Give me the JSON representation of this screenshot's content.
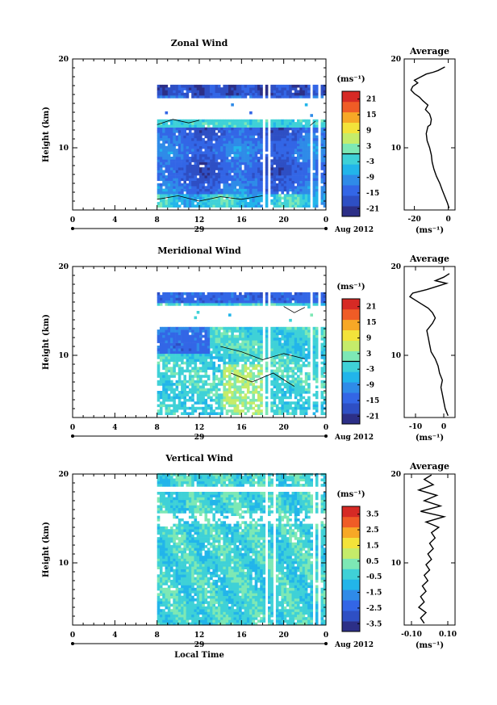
{
  "figure": {
    "bottom_xlabel": "Local Time",
    "date_label": "Aug 2012",
    "day_label": "29",
    "profile_title": "Average"
  },
  "chart_data": [
    {
      "type": "heatmap",
      "id": "zonal",
      "title": "Zonal Wind",
      "ylabel": "Height (km)",
      "xlabel": "",
      "x_ticks": [
        "0",
        "4",
        "8",
        "12",
        "16",
        "20",
        "0"
      ],
      "xlim": [
        0,
        24
      ],
      "ylim": [
        3,
        20
      ],
      "y_ticks": [
        10,
        20
      ],
      "data_time_range": [
        8,
        24
      ],
      "data_height_range": [
        3,
        17
      ],
      "colorbar": {
        "unit": "(ms⁻¹)",
        "ticks": [
          "21",
          "15",
          "9",
          "3",
          "-3",
          "-9",
          "-15",
          "-21"
        ],
        "range": [
          -24,
          24
        ],
        "zero_line": true
      },
      "profile": {
        "title": "Average",
        "xlabel": "(ms⁻¹)",
        "x_ticks": [
          "-20",
          "0"
        ],
        "xlim": [
          -26,
          4
        ],
        "ylim": [
          3,
          20
        ],
        "y_ticks": [
          10,
          20
        ],
        "points": [
          [
            0.5,
            3.2
          ],
          [
            -0.5,
            3.8
          ],
          [
            -2,
            4.5
          ],
          [
            -3.5,
            5.2
          ],
          [
            -5,
            6
          ],
          [
            -7,
            6.8
          ],
          [
            -8.5,
            7.6
          ],
          [
            -9.5,
            8.4
          ],
          [
            -10,
            9.2
          ],
          [
            -11,
            10
          ],
          [
            -12.5,
            10.8
          ],
          [
            -13,
            11.6
          ],
          [
            -12,
            12.4
          ],
          [
            -10.5,
            12.6
          ],
          [
            -10,
            13.2
          ],
          [
            -11,
            13.8
          ],
          [
            -13.5,
            14.3
          ],
          [
            -12,
            14.8
          ],
          [
            -15,
            15.3
          ],
          [
            -17,
            15.7
          ],
          [
            -20,
            16.1
          ],
          [
            -22,
            16.5
          ],
          [
            -21,
            16.9
          ],
          [
            -18,
            17.3
          ],
          [
            -20,
            17.6
          ],
          [
            -16,
            18
          ],
          [
            -13,
            18.3
          ],
          [
            -9,
            18.5
          ],
          [
            -6,
            18.7
          ],
          [
            -2,
            19.1
          ]
        ]
      }
    },
    {
      "type": "heatmap",
      "id": "meridional",
      "title": "Meridional Wind",
      "ylabel": "Height (km)",
      "xlabel": "",
      "x_ticks": [
        "0",
        "4",
        "8",
        "12",
        "16",
        "20",
        "0"
      ],
      "xlim": [
        0,
        24
      ],
      "ylim": [
        3,
        20
      ],
      "y_ticks": [
        10,
        20
      ],
      "data_time_range": [
        8,
        24
      ],
      "data_height_range": [
        3,
        17
      ],
      "colorbar": {
        "unit": "(ms⁻¹)",
        "ticks": [
          "21",
          "15",
          "9",
          "3",
          "-3",
          "-9",
          "-15",
          "-21"
        ],
        "range": [
          -24,
          24
        ],
        "zero_line": true
      },
      "profile": {
        "title": "Average",
        "xlabel": "(ms⁻¹)",
        "x_ticks": [
          "-10",
          "0"
        ],
        "xlim": [
          -14,
          4
        ],
        "ylim": [
          3,
          20
        ],
        "y_ticks": [
          10,
          20
        ],
        "points": [
          [
            1.5,
            3.2
          ],
          [
            0.5,
            4
          ],
          [
            0,
            4.8
          ],
          [
            -0.5,
            5.6
          ],
          [
            -1,
            6.4
          ],
          [
            -0.5,
            7.2
          ],
          [
            -1.5,
            8
          ],
          [
            -2,
            8.8
          ],
          [
            -3,
            9.6
          ],
          [
            -4.5,
            10.4
          ],
          [
            -5,
            11.2
          ],
          [
            -5.5,
            12
          ],
          [
            -6,
            12.8
          ],
          [
            -4,
            13.6
          ],
          [
            -3,
            14.2
          ],
          [
            -4,
            14.8
          ],
          [
            -5.5,
            15.3
          ],
          [
            -8,
            15.8
          ],
          [
            -10,
            16.2
          ],
          [
            -12,
            16.6
          ],
          [
            -11,
            17
          ],
          [
            -6,
            17.4
          ],
          [
            -2,
            17.8
          ],
          [
            1,
            18.1
          ],
          [
            -3,
            18.4
          ],
          [
            0,
            18.8
          ],
          [
            2,
            19.2
          ]
        ]
      }
    },
    {
      "type": "heatmap",
      "id": "vertical",
      "title": "Vertical Wind",
      "ylabel": "Height (km)",
      "xlabel": "Local Time",
      "x_ticks": [
        "0",
        "4",
        "8",
        "12",
        "16",
        "20",
        "0"
      ],
      "xlim": [
        0,
        24
      ],
      "ylim": [
        3,
        20
      ],
      "y_ticks": [
        10,
        20
      ],
      "data_time_range": [
        8,
        24
      ],
      "data_height_range": [
        3,
        20
      ],
      "colorbar": {
        "unit": "(ms⁻¹)",
        "ticks": [
          "3.5",
          "2.5",
          "1.5",
          "0.5",
          "-0.5",
          "-1.5",
          "-2.5",
          "-3.5"
        ],
        "range": [
          -4,
          4
        ],
        "zero_line": false
      },
      "profile": {
        "title": "Average",
        "xlabel": "(ms⁻¹)",
        "x_ticks": [
          "-0.10",
          "0.10"
        ],
        "xlim": [
          -0.14,
          0.14
        ],
        "ylim": [
          3,
          20
        ],
        "y_ticks": [
          10,
          20
        ],
        "points": [
          [
            -0.03,
            3.2
          ],
          [
            -0.05,
            3.8
          ],
          [
            -0.02,
            4.4
          ],
          [
            -0.06,
            5
          ],
          [
            -0.03,
            5.6
          ],
          [
            -0.05,
            6.2
          ],
          [
            -0.02,
            6.8
          ],
          [
            -0.04,
            7.4
          ],
          [
            -0.01,
            8
          ],
          [
            -0.03,
            8.6
          ],
          [
            0.0,
            9.2
          ],
          [
            -0.02,
            9.8
          ],
          [
            0.01,
            10.4
          ],
          [
            -0.01,
            11
          ],
          [
            0.02,
            11.6
          ],
          [
            0.0,
            12.2
          ],
          [
            0.03,
            12.8
          ],
          [
            0.01,
            13.4
          ],
          [
            0.05,
            14
          ],
          [
            -0.02,
            14.6
          ],
          [
            0.08,
            15.2
          ],
          [
            -0.05,
            15.8
          ],
          [
            0.06,
            16.4
          ],
          [
            -0.03,
            17
          ],
          [
            0.04,
            17.6
          ],
          [
            -0.06,
            18.2
          ],
          [
            0.02,
            18.8
          ],
          [
            -0.03,
            19.4
          ],
          [
            0.01,
            19.9
          ]
        ]
      }
    }
  ],
  "colors": {
    "scale": [
      "#2c2f87",
      "#2e4fc4",
      "#3366e6",
      "#2f8be8",
      "#22b5ea",
      "#3fd1d7",
      "#7de8b5",
      "#c5ec6a",
      "#f3e33a",
      "#f7a826",
      "#ef5c26",
      "#d62a25"
    ]
  }
}
